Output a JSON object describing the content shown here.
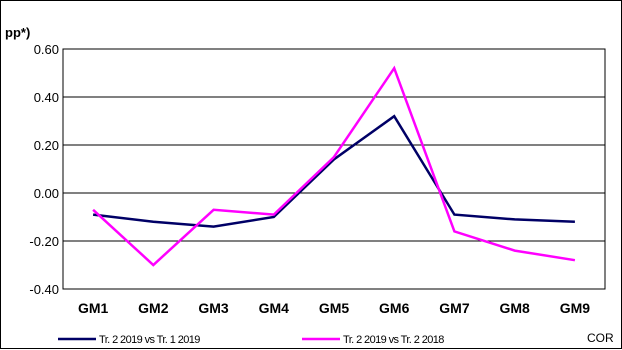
{
  "chart_data": {
    "type": "line",
    "ylabel": "pp*)",
    "ylim": [
      -0.4,
      0.6
    ],
    "yticks": [
      "0.60",
      "0.40",
      "0.20",
      "0.00",
      "-0.20",
      "-0.40"
    ],
    "ytick_values": [
      0.6,
      0.4,
      0.2,
      0.0,
      -0.2,
      -0.4
    ],
    "categories": [
      "GM1",
      "GM2",
      "GM3",
      "GM4",
      "GM5",
      "GM6",
      "GM7",
      "GM8",
      "GM9"
    ],
    "grid": true,
    "legend_position": "bottom",
    "note": "COR",
    "series": [
      {
        "name": "Tr. 2 2019 vs Tr. 1 2019",
        "color": "#000066",
        "values": [
          -0.09,
          -0.12,
          -0.14,
          -0.1,
          0.14,
          0.32,
          -0.09,
          -0.11,
          -0.12
        ]
      },
      {
        "name": "Tr. 2 2019 vs Tr. 2 2018",
        "color": "#ff00ff",
        "values": [
          -0.07,
          -0.3,
          -0.07,
          -0.09,
          0.15,
          0.52,
          -0.16,
          -0.24,
          -0.28
        ]
      }
    ]
  }
}
